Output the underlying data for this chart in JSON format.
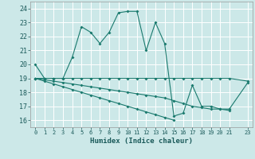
{
  "title": "",
  "xlabel": "Humidex (Indice chaleur)",
  "ylabel": "",
  "background_color": "#cce8e8",
  "grid_color": "#ffffff",
  "line_color": "#1a7a6e",
  "xlim": [
    -0.5,
    23.5
  ],
  "ylim": [
    15.5,
    24.5
  ],
  "yticks": [
    16,
    17,
    18,
    19,
    20,
    21,
    22,
    23,
    24
  ],
  "series": [
    {
      "x": [
        0,
        1,
        2,
        3,
        4,
        5,
        6,
        7,
        8,
        9,
        10,
        11,
        12,
        13,
        14,
        15,
        16,
        17,
        18,
        19,
        20,
        21,
        23
      ],
      "y": [
        20.0,
        19.0,
        19.0,
        19.0,
        20.5,
        22.7,
        22.3,
        21.5,
        22.3,
        23.7,
        23.8,
        23.8,
        21.0,
        23.0,
        21.5,
        16.3,
        16.5,
        18.5,
        17.0,
        17.0,
        16.8,
        16.8,
        18.7
      ]
    },
    {
      "x": [
        0,
        1,
        2,
        3,
        4,
        5,
        6,
        7,
        8,
        9,
        10,
        11,
        12,
        13,
        14,
        15,
        16,
        17,
        18,
        19,
        20,
        21,
        23
      ],
      "y": [
        19.0,
        19.0,
        19.0,
        19.0,
        19.0,
        19.0,
        19.0,
        19.0,
        19.0,
        19.0,
        19.0,
        19.0,
        19.0,
        19.0,
        19.0,
        19.0,
        19.0,
        19.0,
        19.0,
        19.0,
        19.0,
        19.0,
        18.8
      ]
    },
    {
      "x": [
        0,
        1,
        2,
        3,
        4,
        5,
        6,
        7,
        8,
        9,
        10,
        11,
        12,
        13,
        14,
        15
      ],
      "y": [
        19.0,
        18.8,
        18.6,
        18.4,
        18.2,
        18.0,
        17.8,
        17.6,
        17.4,
        17.2,
        17.0,
        16.8,
        16.6,
        16.4,
        16.2,
        16.0
      ]
    },
    {
      "x": [
        0,
        1,
        2,
        3,
        4,
        5,
        6,
        7,
        8,
        9,
        10,
        11,
        12,
        13,
        14,
        15,
        16,
        17,
        18,
        19,
        20,
        21
      ],
      "y": [
        19.0,
        18.9,
        18.8,
        18.7,
        18.6,
        18.5,
        18.4,
        18.3,
        18.2,
        18.1,
        18.0,
        17.9,
        17.8,
        17.7,
        17.6,
        17.4,
        17.2,
        17.0,
        16.9,
        16.8,
        16.8,
        16.7
      ]
    }
  ]
}
